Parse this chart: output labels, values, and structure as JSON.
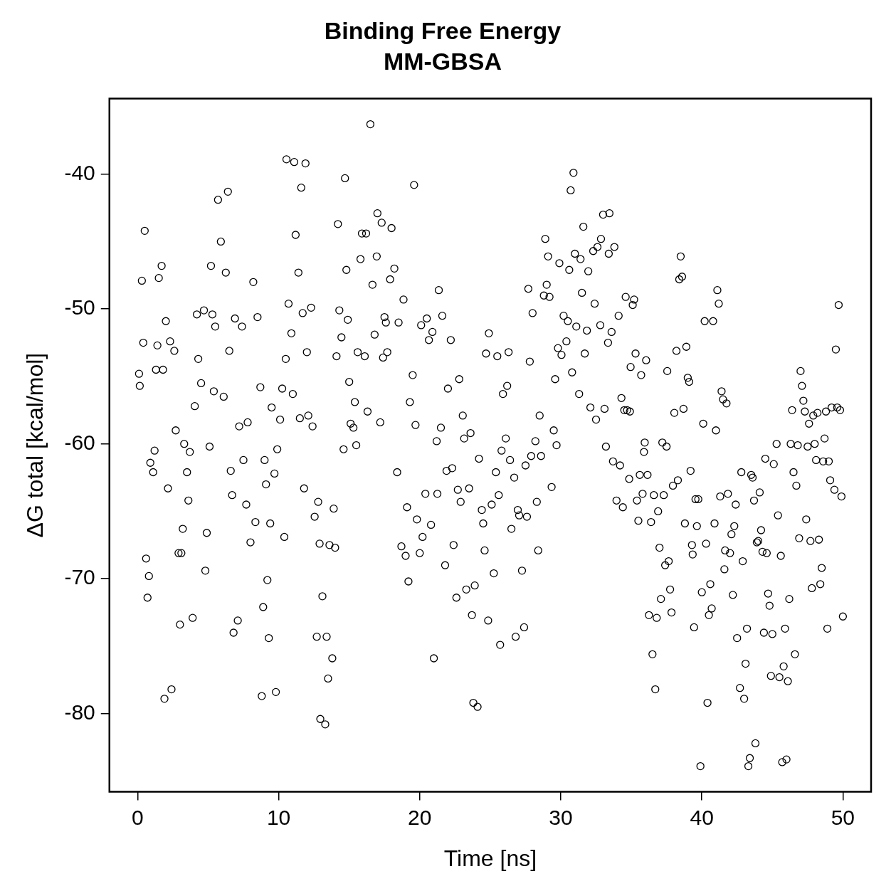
{
  "chart_data": {
    "type": "scatter",
    "title": "Binding Free Energy",
    "subtitle": "MM-GBSA",
    "xlabel": "Time [ns]",
    "ylabel": "ΔG total [kcal/mol]",
    "xlim": [
      -2,
      52
    ],
    "xticks": [
      0,
      10,
      20,
      30,
      40,
      50
    ],
    "ylim": [
      -85.8,
      -34.4
    ],
    "yticks": [
      -80,
      -70,
      -60,
      -50,
      -40
    ],
    "grid": false,
    "legend": false,
    "marker": "circle",
    "series": [
      {
        "color": "#000000",
        "x": [
          0.1,
          0.15,
          0.3,
          0.4,
          0.5,
          0.6,
          0.8,
          0.7,
          0.9,
          1.1,
          1.2,
          1.3,
          1.4,
          1.5,
          1.7,
          1.8,
          1.9,
          2.0,
          2.15,
          2.4,
          2.3,
          2.6,
          2.7,
          2.9,
          3.1,
          3.0,
          3.2,
          3.3,
          3.5,
          3.6,
          3.7,
          3.9,
          4.05,
          4.2,
          4.3,
          4.5,
          4.7,
          4.8,
          4.9,
          5.1,
          5.2,
          5.3,
          5.4,
          5.5,
          5.7,
          5.9,
          6.1,
          6.25,
          6.4,
          6.5,
          6.6,
          6.7,
          6.8,
          6.9,
          7.1,
          7.2,
          7.4,
          7.5,
          7.7,
          7.8,
          8.0,
          8.2,
          8.35,
          8.5,
          8.7,
          8.8,
          8.9,
          9.0,
          9.1,
          9.2,
          9.3,
          9.4,
          9.5,
          9.7,
          9.8,
          9.9,
          10.1,
          10.25,
          10.4,
          10.5,
          10.55,
          10.7,
          10.9,
          11.0,
          11.1,
          11.2,
          11.4,
          11.5,
          11.6,
          11.7,
          11.8,
          11.9,
          12.0,
          12.1,
          12.3,
          12.4,
          12.55,
          12.7,
          12.8,
          12.9,
          12.95,
          13.1,
          13.3,
          13.4,
          13.5,
          13.6,
          13.8,
          13.9,
          14.0,
          14.1,
          14.2,
          14.3,
          14.45,
          14.6,
          14.7,
          14.8,
          14.9,
          15.0,
          15.1,
          15.3,
          15.4,
          15.5,
          15.6,
          15.8,
          15.9,
          16.1,
          16.2,
          16.3,
          16.5,
          16.65,
          16.8,
          16.95,
          17.0,
          17.2,
          17.3,
          17.4,
          17.5,
          17.6,
          17.7,
          17.9,
          18.0,
          18.2,
          18.4,
          18.5,
          18.7,
          18.85,
          19.0,
          19.1,
          19.2,
          19.3,
          19.5,
          19.6,
          19.7,
          19.8,
          20.0,
          20.1,
          20.2,
          20.4,
          20.5,
          20.65,
          20.8,
          20.9,
          21.0,
          21.2,
          21.25,
          21.35,
          21.5,
          21.6,
          21.8,
          21.9,
          22.0,
          22.2,
          22.3,
          22.4,
          22.6,
          22.7,
          22.8,
          22.9,
          23.05,
          23.15,
          23.3,
          23.5,
          23.6,
          23.7,
          23.8,
          23.9,
          24.1,
          24.2,
          24.4,
          24.5,
          24.6,
          24.7,
          24.85,
          24.9,
          25.1,
          25.25,
          25.4,
          25.5,
          25.6,
          25.7,
          25.8,
          25.9,
          26.1,
          26.2,
          26.3,
          26.4,
          26.5,
          26.7,
          26.8,
          26.95,
          27.05,
          27.25,
          27.4,
          27.5,
          27.6,
          27.7,
          27.8,
          27.9,
          28.0,
          28.2,
          28.3,
          28.4,
          28.5,
          28.6,
          28.8,
          28.9,
          29.0,
          29.1,
          29.2,
          29.35,
          29.5,
          29.6,
          29.7,
          29.8,
          29.9,
          30.05,
          30.2,
          30.4,
          30.5,
          30.6,
          30.7,
          30.8,
          30.9,
          31.0,
          31.1,
          31.3,
          31.4,
          31.5,
          31.6,
          31.7,
          31.85,
          31.95,
          32.1,
          32.3,
          32.4,
          32.5,
          32.6,
          32.8,
          32.85,
          33.0,
          33.1,
          33.2,
          33.35,
          33.4,
          33.45,
          33.6,
          33.7,
          33.8,
          33.95,
          34.1,
          34.2,
          34.3,
          34.4,
          34.5,
          34.6,
          34.7,
          34.85,
          34.9,
          34.95,
          35.1,
          35.2,
          35.3,
          35.4,
          35.5,
          35.6,
          35.7,
          35.8,
          35.9,
          35.95,
          36.05,
          36.15,
          36.25,
          36.4,
          36.5,
          36.6,
          36.7,
          36.8,
          36.9,
          37.0,
          37.1,
          37.2,
          37.3,
          37.4,
          37.5,
          37.55,
          37.65,
          37.75,
          37.85,
          37.95,
          38.05,
          38.2,
          38.3,
          38.4,
          38.5,
          38.6,
          38.7,
          38.8,
          38.9,
          39.0,
          39.1,
          39.2,
          39.3,
          39.35,
          39.45,
          39.55,
          39.65,
          39.75,
          39.9,
          40.0,
          40.1,
          40.2,
          40.3,
          40.4,
          40.5,
          40.6,
          40.7,
          40.8,
          40.9,
          41.0,
          41.1,
          41.2,
          41.3,
          41.4,
          41.5,
          41.6,
          41.65,
          41.75,
          41.85,
          42.0,
          42.1,
          42.2,
          42.3,
          42.4,
          42.5,
          42.7,
          42.8,
          42.9,
          43.0,
          43.1,
          43.2,
          43.3,
          43.4,
          43.5,
          43.6,
          43.7,
          43.8,
          43.9,
          44.0,
          44.1,
          44.2,
          44.3,
          44.4,
          44.5,
          44.6,
          44.7,
          44.8,
          44.9,
          45.0,
          45.1,
          45.3,
          45.4,
          45.5,
          45.6,
          45.7,
          45.8,
          45.9,
          46.0,
          46.1,
          46.2,
          46.3,
          46.4,
          46.5,
          46.6,
          46.7,
          46.8,
          46.9,
          47.0,
          47.1,
          47.2,
          47.3,
          47.4,
          47.5,
          47.6,
          47.7,
          47.8,
          47.9,
          48.0,
          48.1,
          48.2,
          48.3,
          48.4,
          48.5,
          48.6,
          48.7,
          48.8,
          48.9,
          49.0,
          49.1,
          49.2,
          49.4,
          49.5,
          49.6,
          49.7,
          49.8,
          49.9,
          50.0
        ],
        "values": [
          -54.8,
          -55.7,
          -47.9,
          -52.5,
          -44.2,
          -68.5,
          -69.8,
          -71.4,
          -61.4,
          -62.1,
          -60.5,
          -54.5,
          -52.7,
          -47.7,
          -46.8,
          -54.5,
          -78.9,
          -50.9,
          -63.3,
          -78.2,
          -52.4,
          -53.1,
          -59.0,
          -68.1,
          -68.1,
          -73.4,
          -66.3,
          -60.0,
          -62.1,
          -64.2,
          -60.6,
          -72.9,
          -57.2,
          -50.4,
          -53.7,
          -55.5,
          -50.1,
          -69.4,
          -66.6,
          -60.2,
          -46.8,
          -50.4,
          -56.1,
          -51.3,
          -41.9,
          -45.0,
          -56.5,
          -47.3,
          -41.3,
          -53.1,
          -62.0,
          -63.8,
          -74.0,
          -50.7,
          -73.1,
          -58.7,
          -51.3,
          -61.2,
          -64.5,
          -58.4,
          -67.3,
          -48.0,
          -65.8,
          -50.6,
          -55.8,
          -78.7,
          -72.1,
          -61.2,
          -63.0,
          -70.1,
          -74.4,
          -65.9,
          -57.3,
          -62.2,
          -78.4,
          -60.4,
          -58.2,
          -55.9,
          -66.9,
          -53.7,
          -38.9,
          -49.6,
          -51.8,
          -56.3,
          -39.1,
          -44.5,
          -47.3,
          -58.1,
          -41.0,
          -50.3,
          -63.3,
          -39.2,
          -53.2,
          -57.9,
          -49.9,
          -58.7,
          -65.4,
          -74.3,
          -64.3,
          -67.4,
          -80.4,
          -71.3,
          -80.8,
          -74.3,
          -77.4,
          -67.5,
          -75.9,
          -64.8,
          -67.7,
          -53.5,
          -43.7,
          -50.1,
          -52.1,
          -60.4,
          -40.3,
          -47.1,
          -50.8,
          -55.4,
          -58.5,
          -58.8,
          -56.9,
          -60.1,
          -53.2,
          -46.3,
          -44.4,
          -53.5,
          -44.4,
          -57.6,
          -36.3,
          -48.2,
          -51.9,
          -46.1,
          -42.9,
          -58.4,
          -43.6,
          -53.6,
          -50.6,
          -51.0,
          -53.2,
          -47.8,
          -44.0,
          -47.0,
          -62.1,
          -51.0,
          -67.6,
          -49.3,
          -68.3,
          -64.7,
          -70.2,
          -56.9,
          -54.9,
          -40.8,
          -58.6,
          -65.6,
          -68.1,
          -51.2,
          -66.9,
          -63.7,
          -50.7,
          -52.3,
          -66.0,
          -51.7,
          -75.9,
          -59.8,
          -63.7,
          -48.6,
          -58.8,
          -50.5,
          -69.0,
          -62.0,
          -55.9,
          -52.3,
          -61.8,
          -67.5,
          -71.4,
          -63.4,
          -55.2,
          -64.3,
          -57.9,
          -59.6,
          -70.8,
          -63.3,
          -59.2,
          -72.7,
          -79.2,
          -70.5,
          -79.5,
          -61.1,
          -64.9,
          -65.9,
          -67.9,
          -53.3,
          -73.1,
          -51.8,
          -64.5,
          -69.6,
          -62.1,
          -53.5,
          -63.8,
          -74.9,
          -60.5,
          -56.3,
          -59.6,
          -55.7,
          -53.2,
          -61.2,
          -66.3,
          -62.5,
          -74.3,
          -64.9,
          -65.3,
          -69.4,
          -73.6,
          -61.6,
          -65.4,
          -48.5,
          -53.9,
          -60.9,
          -50.3,
          -59.8,
          -64.3,
          -67.9,
          -57.9,
          -60.9,
          -49.0,
          -44.8,
          -48.2,
          -46.1,
          -49.1,
          -63.2,
          -59.0,
          -55.2,
          -60.1,
          -52.9,
          -46.6,
          -53.4,
          -50.5,
          -52.4,
          -50.9,
          -47.1,
          -41.2,
          -54.7,
          -39.9,
          -45.9,
          -51.3,
          -56.3,
          -46.3,
          -48.8,
          -43.9,
          -53.3,
          -51.6,
          -47.2,
          -57.3,
          -45.7,
          -49.6,
          -58.2,
          -45.4,
          -51.2,
          -44.8,
          -43.0,
          -57.4,
          -60.2,
          -52.5,
          -45.9,
          -42.9,
          -51.7,
          -61.3,
          -45.4,
          -64.2,
          -50.5,
          -61.6,
          -56.6,
          -64.7,
          -57.5,
          -49.1,
          -57.5,
          -62.6,
          -57.6,
          -54.3,
          -49.7,
          -49.3,
          -53.3,
          -64.2,
          -65.7,
          -62.3,
          -54.9,
          -63.7,
          -60.6,
          -59.9,
          -53.8,
          -62.3,
          -72.7,
          -65.8,
          -75.6,
          -63.8,
          -78.2,
          -72.9,
          -65.0,
          -67.7,
          -71.5,
          -59.9,
          -63.8,
          -69.0,
          -60.2,
          -54.6,
          -68.7,
          -70.8,
          -72.5,
          -63.1,
          -57.7,
          -53.1,
          -62.7,
          -47.8,
          -46.1,
          -47.6,
          -57.4,
          -65.9,
          -52.8,
          -55.1,
          -55.4,
          -62.0,
          -67.5,
          -68.2,
          -73.6,
          -64.1,
          -66.1,
          -64.1,
          -83.9,
          -71.0,
          -58.5,
          -50.9,
          -67.4,
          -79.2,
          -72.7,
          -70.4,
          -72.2,
          -50.9,
          -65.9,
          -59.0,
          -48.6,
          -49.6,
          -63.9,
          -56.1,
          -56.7,
          -69.3,
          -67.9,
          -57.0,
          -63.7,
          -68.1,
          -66.7,
          -71.2,
          -66.1,
          -64.5,
          -74.4,
          -78.1,
          -62.1,
          -68.7,
          -78.9,
          -76.3,
          -73.7,
          -83.9,
          -83.3,
          -62.3,
          -62.5,
          -64.2,
          -82.2,
          -67.3,
          -67.2,
          -63.6,
          -66.4,
          -68.0,
          -74.0,
          -61.1,
          -68.1,
          -71.1,
          -72.0,
          -77.2,
          -74.1,
          -61.5,
          -60.0,
          -65.3,
          -77.3,
          -68.3,
          -83.6,
          -76.5,
          -73.7,
          -83.4,
          -77.6,
          -71.5,
          -60.0,
          -57.5,
          -62.1,
          -75.6,
          -63.1,
          -60.1,
          -67.0,
          -54.6,
          -55.7,
          -56.8,
          -57.6,
          -65.6,
          -60.2,
          -58.5,
          -67.2,
          -70.7,
          -57.9,
          -60.0,
          -61.2,
          -57.7,
          -67.1,
          -70.4,
          -69.2,
          -61.3,
          -59.6,
          -57.6,
          -73.7,
          -61.3,
          -62.7,
          -57.3,
          -63.4,
          -53.0,
          -57.3,
          -49.7,
          -57.5,
          -63.9,
          -72.8
        ]
      }
    ]
  }
}
